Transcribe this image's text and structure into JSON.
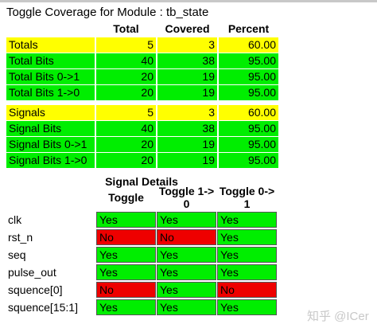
{
  "title": "Toggle Coverage for Module : tb_state",
  "summary": {
    "headers": [
      "Total",
      "Covered",
      "Percent"
    ],
    "sections": [
      {
        "rows": [
          {
            "label": "Totals",
            "total": 5,
            "covered": 3,
            "percent": "60.00"
          },
          {
            "label": "Total Bits",
            "total": 40,
            "covered": 38,
            "percent": "95.00"
          },
          {
            "label": "Total Bits 0->1",
            "total": 20,
            "covered": 19,
            "percent": "95.00"
          },
          {
            "label": "Total Bits 1->0",
            "total": 20,
            "covered": 19,
            "percent": "95.00"
          }
        ]
      },
      {
        "rows": [
          {
            "label": "Signals",
            "total": 5,
            "covered": 3,
            "percent": "60.00"
          },
          {
            "label": "Signal Bits",
            "total": 40,
            "covered": 38,
            "percent": "95.00"
          },
          {
            "label": "Signal Bits 0->1",
            "total": 20,
            "covered": 19,
            "percent": "95.00"
          },
          {
            "label": "Signal Bits 1->0",
            "total": 20,
            "covered": 19,
            "percent": "95.00"
          }
        ]
      }
    ]
  },
  "details": {
    "title": "Signal Details",
    "headers": [
      "Toggle",
      "Toggle 1->0",
      "Toggle 0->1"
    ],
    "rows": [
      {
        "signal": "clk",
        "cells": [
          "Yes",
          "Yes",
          "Yes"
        ]
      },
      {
        "signal": "rst_n",
        "cells": [
          "No",
          "No",
          "Yes"
        ]
      },
      {
        "signal": "seq",
        "cells": [
          "Yes",
          "Yes",
          "Yes"
        ]
      },
      {
        "signal": "pulse_out",
        "cells": [
          "Yes",
          "Yes",
          "Yes"
        ]
      },
      {
        "signal": "squence[0]",
        "cells": [
          "No",
          "Yes",
          "No"
        ]
      },
      {
        "signal": "squence[15:1]",
        "cells": [
          "Yes",
          "Yes",
          "Yes"
        ]
      }
    ]
  },
  "watermark": "知乎 @ICer"
}
